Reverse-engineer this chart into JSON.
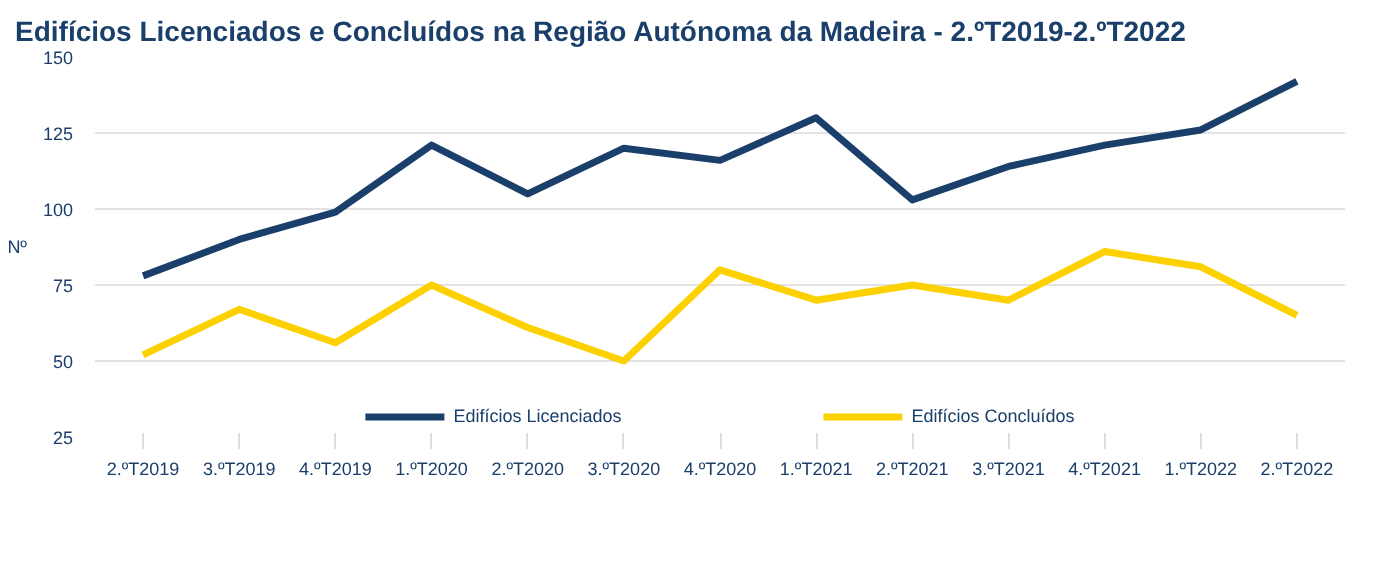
{
  "chart_data": {
    "type": "line",
    "title": "Edifícios Licenciados e Concluídos na Região Autónoma da Madeira - 2.ºT2019-2.ºT2022",
    "ylabel": "Nº",
    "categories": [
      "2.ºT2019",
      "3.ºT2019",
      "4.ºT2019",
      "1.ºT2020",
      "2.ºT2020",
      "3.ºT2020",
      "4.ºT2020",
      "1.ºT2021",
      "2.ºT2021",
      "3.ºT2021",
      "4.ºT2021",
      "1.ºT2022",
      "2.ºT2022"
    ],
    "series": [
      {
        "name": "Edifícios Licenciados",
        "color": "#1b3f6b",
        "values": [
          78,
          90,
          99,
          121,
          105,
          120,
          116,
          130,
          103,
          114,
          121,
          126,
          142
        ]
      },
      {
        "name": "Edifícios Concluídos",
        "color": "#fdd000",
        "values": [
          52,
          67,
          56,
          75,
          61,
          50,
          80,
          70,
          75,
          70,
          86,
          81,
          65
        ]
      }
    ],
    "ylim": [
      25,
      150
    ],
    "yticks": [
      25,
      50,
      75,
      100,
      125,
      150
    ],
    "grid": "y",
    "legend": "bottom",
    "marker": "none",
    "line_style": "solid"
  }
}
